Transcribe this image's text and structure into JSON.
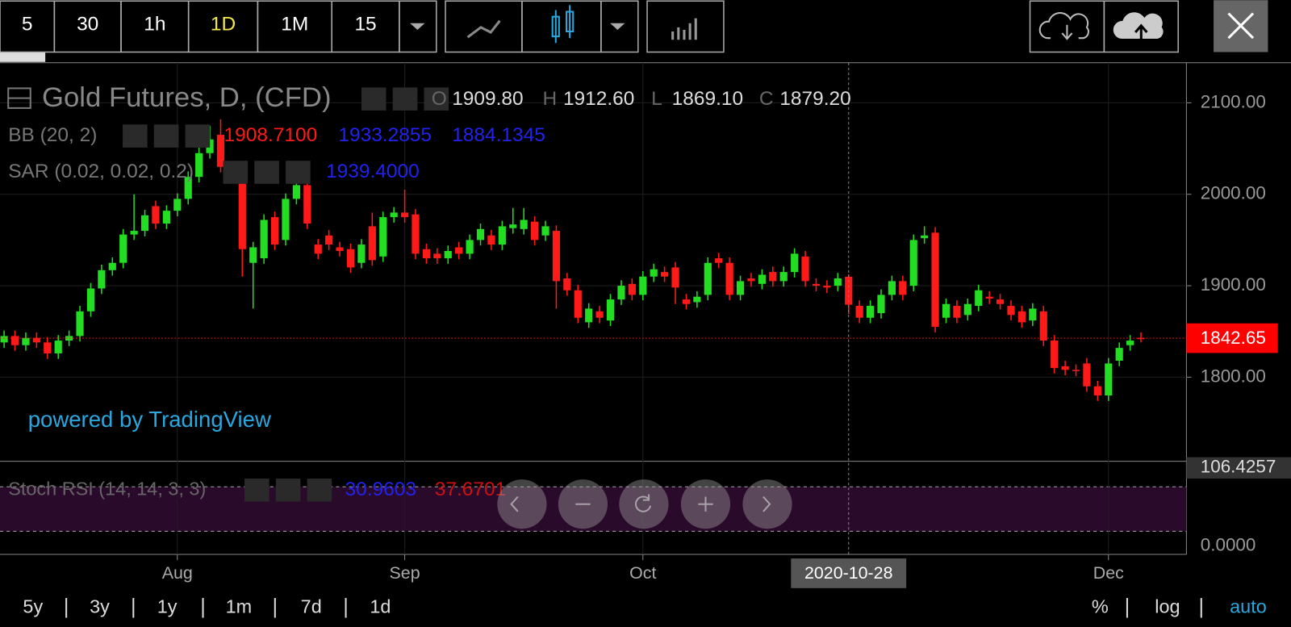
{
  "toolbar": {
    "intervals": [
      "5",
      "30",
      "1h",
      "1D",
      "1M",
      "15"
    ],
    "active": "1D"
  },
  "ranges": [
    "5y",
    "3y",
    "1y",
    "1m",
    "7d",
    "1d"
  ],
  "scale_options": [
    "%",
    "log",
    "auto"
  ],
  "legend": {
    "title": "Gold Futures, D, (CFD)",
    "ohlc": [
      [
        "O",
        "1909.80"
      ],
      [
        "H",
        "1912.60"
      ],
      [
        "L",
        "1869.10"
      ],
      [
        "C",
        "1879.20"
      ]
    ],
    "bb": {
      "name": "BB (20, 2)",
      "values": [
        "1908.7100",
        "1933.2855",
        "1884.1345"
      ]
    },
    "sar": {
      "name": "SAR (0.02, 0.02, 0.2)",
      "values": [
        "1939.4000"
      ]
    }
  },
  "watermark": "powered by TradingView",
  "stoch": {
    "name": "Stoch RSI (14, 14, 3, 3)",
    "values": [
      "30.9603",
      "37.6701"
    ],
    "ylim": [
      0,
      106.4257
    ],
    "yticks": [
      {
        "value": 0,
        "label": "0.0000"
      },
      {
        "value": 106.4257,
        "label": "106.4257"
      }
    ]
  },
  "chart_data": {
    "type": "candlestick",
    "up_color": "#22dd22",
    "down_color": "#ff1a1a",
    "categories": [
      null,
      null,
      null,
      null,
      null,
      null,
      null,
      null,
      null,
      null,
      null,
      null,
      null,
      null,
      null,
      null,
      "Aug",
      null,
      null,
      null,
      null,
      null,
      null,
      null,
      null,
      null,
      null,
      null,
      null,
      null,
      null,
      null,
      null,
      null,
      null,
      null,
      null,
      "Sep",
      null,
      null,
      null,
      null,
      null,
      null,
      null,
      null,
      null,
      null,
      null,
      null,
      null,
      null,
      null,
      null,
      null,
      null,
      null,
      null,
      null,
      "Oct",
      null,
      null,
      null,
      null,
      null,
      null,
      null,
      null,
      null,
      null,
      null,
      null,
      null,
      null,
      null,
      null,
      null,
      null,
      null,
      null,
      null,
      null,
      null,
      null,
      null,
      null,
      null,
      null,
      null,
      null,
      null,
      null,
      null,
      null,
      null,
      null,
      null,
      null,
      null,
      null,
      null,
      null,
      "Dec",
      null,
      null,
      null
    ],
    "crosshair_date": "2020-10-28",
    "open": [
      1838,
      1845,
      1835,
      1843,
      1838,
      1826,
      1840,
      1845,
      1872,
      1897,
      1917,
      1925,
      1956,
      1960,
      1987,
      1968,
      1982,
      1995,
      2019,
      2045,
      2065,
      2030,
      2030,
      1925,
      1930,
      1975,
      1950,
      1995,
      2010,
      1945,
      1955,
      1942,
      1940,
      1925,
      1965,
      1932,
      1975,
      1980,
      1978,
      1940,
      1935,
      1930,
      1942,
      1935,
      1950,
      1955,
      1945,
      1963,
      1962,
      1970,
      1955,
      1960,
      1908,
      1895,
      1860,
      1872,
      1862,
      1885,
      1902,
      1890,
      1910,
      1915,
      1920,
      1885,
      1882,
      1890,
      1930,
      1925,
      1890,
      1908,
      1902,
      1915,
      1905,
      1915,
      1932,
      1902,
      1900,
      1900,
      1909.8,
      1878,
      1865,
      1870,
      1890,
      1905,
      1900,
      1952,
      1958,
      1865,
      1878,
      1868,
      1878,
      1888,
      1885,
      1878,
      1872,
      1862,
      1872,
      1840,
      1812,
      1808,
      1815,
      1790,
      1780,
      1818,
      1835,
      1843
    ],
    "high": [
      1851,
      1851,
      1849,
      1849,
      1844,
      1846,
      1851,
      1878,
      1903,
      1923,
      1931,
      1962,
      2000,
      1983,
      1993,
      1988,
      2001,
      2025,
      2051,
      2075,
      2082,
      2036,
      2036,
      1948,
      1978,
      1981,
      2001,
      2016,
      2016,
      1951,
      1961,
      1948,
      1946,
      1951,
      1980,
      1981,
      1986,
      2005,
      1984,
      1946,
      1941,
      1944,
      1948,
      1956,
      1968,
      1961,
      1971,
      1985,
      1985,
      1976,
      1971,
      1966,
      1914,
      1901,
      1881,
      1878,
      1891,
      1906,
      1908,
      1916,
      1924,
      1921,
      1926,
      1891,
      1894,
      1931,
      1936,
      1931,
      1911,
      1914,
      1918,
      1921,
      1921,
      1941,
      1938,
      1908,
      1906,
      1914,
      1912.6,
      1884,
      1884,
      1896,
      1911,
      1911,
      1956,
      1965,
      1964,
      1886,
      1884,
      1886,
      1901,
      1894,
      1891,
      1884,
      1878,
      1881,
      1878,
      1846,
      1818,
      1814,
      1821,
      1796,
      1821,
      1838,
      1846,
      1849
    ],
    "low": [
      1832,
      1829,
      1829,
      1832,
      1820,
      1820,
      1834,
      1839,
      1866,
      1891,
      1911,
      1919,
      1950,
      1954,
      1962,
      1962,
      1976,
      1989,
      2013,
      2039,
      2024,
      2019,
      1910,
      1875,
      1924,
      1939,
      1944,
      1989,
      1962,
      1929,
      1939,
      1932,
      1914,
      1919,
      1922,
      1926,
      1969,
      1969,
      1929,
      1924,
      1924,
      1924,
      1929,
      1929,
      1944,
      1939,
      1939,
      1957,
      1956,
      1944,
      1949,
      1875,
      1889,
      1859,
      1854,
      1859,
      1856,
      1879,
      1884,
      1884,
      1904,
      1904,
      1880,
      1874,
      1876,
      1884,
      1919,
      1884,
      1884,
      1899,
      1896,
      1899,
      1899,
      1909,
      1899,
      1894,
      1892,
      1894,
      1869.1,
      1859,
      1859,
      1864,
      1884,
      1884,
      1894,
      1946,
      1849,
      1859,
      1859,
      1862,
      1872,
      1880,
      1874,
      1862,
      1854,
      1856,
      1834,
      1804,
      1802,
      1801,
      1784,
      1774,
      1774,
      1812,
      1829,
      1838
    ],
    "close": [
      1845,
      1835,
      1843,
      1838,
      1826,
      1840,
      1845,
      1872,
      1897,
      1917,
      1925,
      1956,
      1960,
      1977,
      1968,
      1982,
      1995,
      2019,
      2045,
      2060,
      2030,
      2025,
      1940,
      1942,
      1972,
      1945,
      1995,
      2010,
      1968,
      1935,
      1945,
      1938,
      1920,
      1945,
      1928,
      1975,
      1980,
      1975,
      1935,
      1930,
      1930,
      1938,
      1935,
      1950,
      1962,
      1945,
      1965,
      1967,
      1972,
      1950,
      1965,
      1905,
      1895,
      1865,
      1875,
      1865,
      1885,
      1900,
      1890,
      1910,
      1918,
      1910,
      1898,
      1880,
      1888,
      1925,
      1925,
      1890,
      1905,
      1905,
      1912,
      1905,
      1915,
      1935,
      1905,
      1900,
      1898,
      1908,
      1879.2,
      1865,
      1878,
      1890,
      1905,
      1890,
      1950,
      1955,
      1855,
      1880,
      1865,
      1880,
      1895,
      1886,
      1880,
      1868,
      1860,
      1875,
      1840,
      1810,
      1808,
      1807,
      1790,
      1780,
      1815,
      1832,
      1840,
      1842.65
    ],
    "last_price": 1842.65,
    "ylim": [
      1708,
      2142
    ],
    "yticks": [
      {
        "value": 1800,
        "label": "1800.00"
      },
      {
        "value": 1900,
        "label": "1900.00"
      },
      {
        "value": 2000,
        "label": "2000.00"
      },
      {
        "value": 2100,
        "label": "2100.00"
      }
    ],
    "grid": true
  }
}
